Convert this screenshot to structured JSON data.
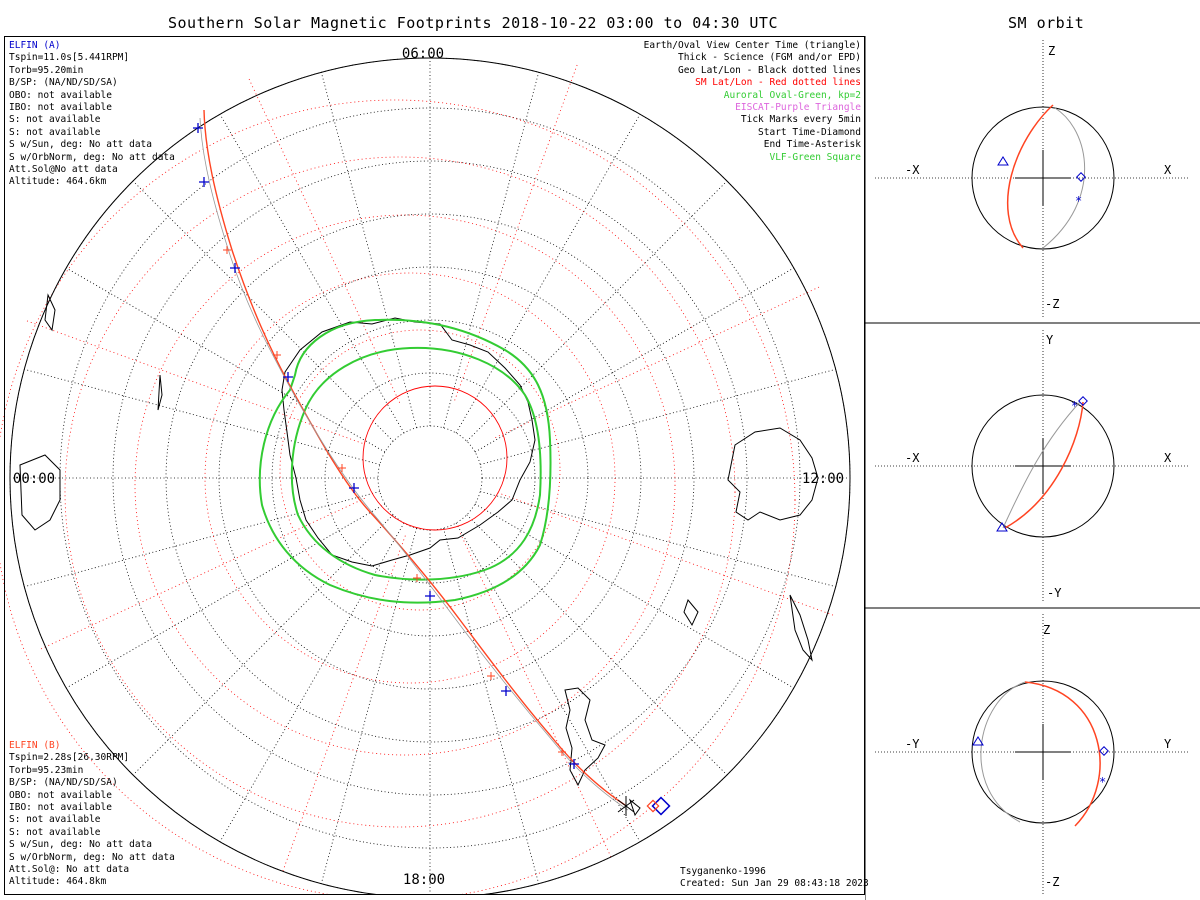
{
  "title": "Southern Solar Magnetic Footprints 2018-10-22 03:00 to 04:30 UTC",
  "orbit_title": "SM orbit",
  "mlt_labels": {
    "top": "06:00",
    "left": "00:00",
    "right": "12:00",
    "bottom": "18:00"
  },
  "elfin_a": {
    "name": "ELFIN (A)",
    "lines": [
      "Tspin=11.0s[5.441RPM]",
      "Torb=95.20min",
      "B/SP: (NA/ND/SD/SA)",
      "OBO: not available",
      "IBO: not available",
      "S: not available",
      "S: not available",
      "S w/Sun, deg: No att data",
      "S w/OrbNorm, deg: No att data",
      "Att.Sol@No att data",
      "Altitude: 464.6km"
    ]
  },
  "elfin_b": {
    "name": "ELFIN (B)",
    "lines": [
      "Tspin=2.28s[26.30RPM]",
      "Torb=95.23min",
      "B/SP: (NA/ND/SD/SA)",
      "OBO: not available",
      "IBO: not available",
      "S: not available",
      "S: not available",
      "S w/Sun, deg: No att data",
      "S w/OrbNorm, deg: No att data",
      "Att.Sol@: No att data",
      "Altitude: 464.8km"
    ]
  },
  "legend": [
    {
      "text": "Earth/Oval View Center Time (triangle)",
      "color": "#000000"
    },
    {
      "text": "Thick - Science (FGM and/or EPD)",
      "color": "#000000"
    },
    {
      "text": "Geo Lat/Lon - Black dotted lines",
      "color": "#000000"
    },
    {
      "text": "SM Lat/Lon - Red dotted lines",
      "color": "#ff0000"
    },
    {
      "text": "Auroral Oval-Green, kp=2",
      "color": "#33cc33"
    },
    {
      "text": "EISCAT-Purple Triangle",
      "color": "#dd66dd"
    },
    {
      "text": "Tick Marks every 5min",
      "color": "#000000"
    },
    {
      "text": "Start Time-Diamond",
      "color": "#000000"
    },
    {
      "text": "End Time-Asterisk",
      "color": "#000000"
    },
    {
      "text": "VLF-Green Square",
      "color": "#33cc33"
    }
  ],
  "footer": {
    "model": "Tsyganenko-1996",
    "created": "Created: Sun Jan 29 08:43:18 2023"
  },
  "panels": [
    {
      "top": "Z",
      "bottom": "-Z",
      "left": "-X",
      "right": "X"
    },
    {
      "top": "Y",
      "bottom": "-Y",
      "left": "-X",
      "right": "X"
    },
    {
      "top": "Z",
      "bottom": "-Z",
      "left": "-Y",
      "right": "Y"
    }
  ],
  "colors": {
    "elfin_a": "#0000cc",
    "elfin_b": "#ff4422",
    "oval": "#33cc33",
    "sm_grid": "#ff0000"
  }
}
